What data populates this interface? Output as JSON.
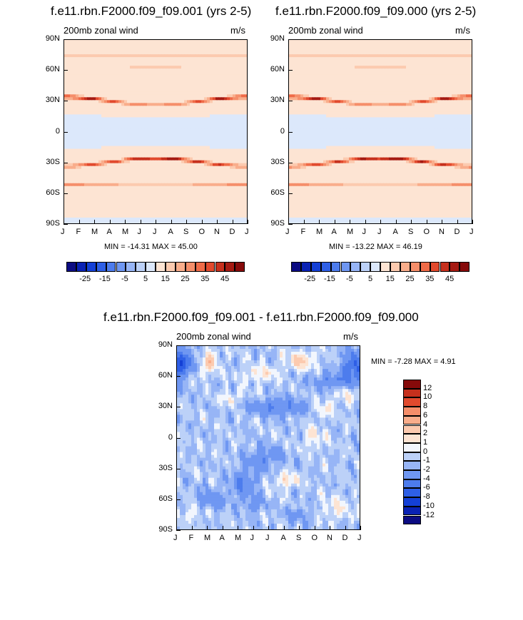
{
  "colors": {
    "blues": [
      "#0c0c82",
      "#0a22b4",
      "#1440d6",
      "#2e5fe6",
      "#4d7ced",
      "#6f97f2",
      "#97b5f6",
      "#bcd1f8",
      "#dce8fb"
    ],
    "neutral": "#f2f6fd",
    "reds": [
      "#fde4d3",
      "#fccaaf",
      "#f9ad8b",
      "#f58e6a",
      "#ef6b48",
      "#e14a2e",
      "#c6301d",
      "#a51a12",
      "#860a0a"
    ]
  },
  "chart_data": [
    {
      "type": "heatmap",
      "title": "f.e11.rbn.F2000.f09_f09.001 (yrs 2-5)",
      "subtitle_left": "200mb zonal wind",
      "subtitle_right": "m/s",
      "x_ticks": [
        "J",
        "F",
        "M",
        "A",
        "M",
        "J",
        "J",
        "A",
        "S",
        "O",
        "N",
        "D",
        "J"
      ],
      "y_ticks": [
        "90N",
        "60N",
        "30N",
        "0",
        "30S",
        "60S",
        "90S"
      ],
      "stats": "MIN = -14.31 MAX =  45.00",
      "min": -14.31,
      "max": 45.0,
      "colorbar_labels": [
        "-25",
        "-15",
        "-5",
        "5",
        "15",
        "25",
        "35",
        "45"
      ],
      "colorbar_orientation": "horizontal"
    },
    {
      "type": "heatmap",
      "title": "f.e11.rbn.F2000.f09_f09.000 (yrs 2-5)",
      "subtitle_left": "200mb zonal wind",
      "subtitle_right": "m/s",
      "x_ticks": [
        "J",
        "F",
        "M",
        "A",
        "M",
        "J",
        "J",
        "A",
        "S",
        "O",
        "N",
        "D",
        "J"
      ],
      "y_ticks": [
        "90N",
        "60N",
        "30N",
        "0",
        "30S",
        "60S",
        "90S"
      ],
      "stats": "MIN = -13.22 MAX =  46.19",
      "min": -13.22,
      "max": 46.19,
      "colorbar_labels": [
        "-25",
        "-15",
        "-5",
        "5",
        "15",
        "25",
        "35",
        "45"
      ],
      "colorbar_orientation": "horizontal"
    },
    {
      "type": "heatmap",
      "title": "f.e11.rbn.F2000.f09_f09.001 - f.e11.rbn.F2000.f09_f09.000",
      "subtitle_left": "200mb zonal wind",
      "subtitle_right": "m/s",
      "x_ticks": [
        "J",
        "F",
        "M",
        "A",
        "M",
        "J",
        "J",
        "A",
        "S",
        "O",
        "N",
        "D",
        "J"
      ],
      "y_ticks": [
        "90N",
        "60N",
        "30N",
        "0",
        "30S",
        "60S",
        "90S"
      ],
      "stats": "MIN =  -7.28 MAX =   4.91",
      "min": -7.28,
      "max": 4.91,
      "colorbar_labels": [
        "12",
        "10",
        "8",
        "6",
        "4",
        "2",
        "1",
        "0",
        "-1",
        "-2",
        "-4",
        "-6",
        "-8",
        "-10",
        "-12"
      ],
      "colorbar_orientation": "vertical"
    }
  ]
}
